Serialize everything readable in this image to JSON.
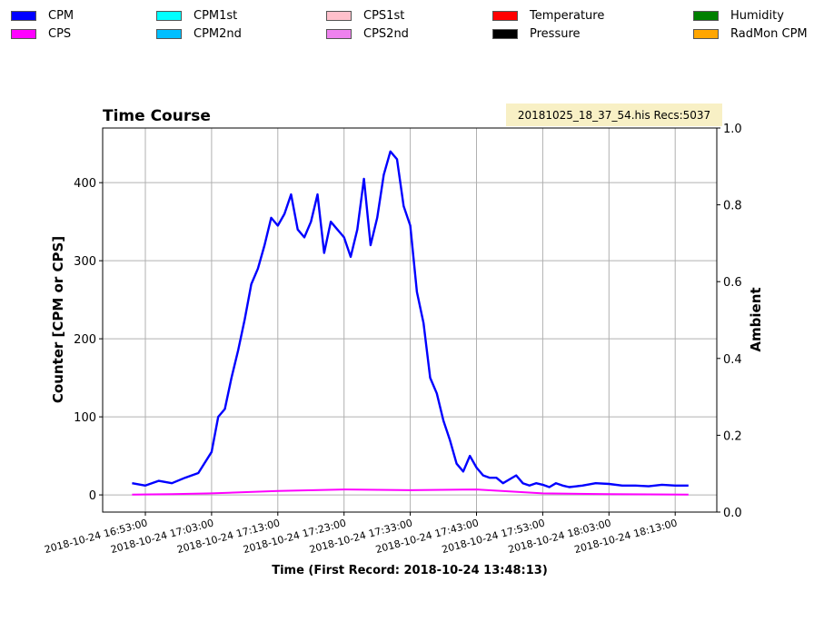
{
  "legend": [
    {
      "label": "CPM",
      "color": "#0000ff"
    },
    {
      "label": "CPS",
      "color": "#ff00ff"
    },
    {
      "label": "CPM1st",
      "color": "#00ffff"
    },
    {
      "label": "CPM2nd",
      "color": "#00bfff"
    },
    {
      "label": "CPS1st",
      "color": "#ffc0cb"
    },
    {
      "label": "CPS2nd",
      "color": "#ee82ee"
    },
    {
      "label": "Temperature",
      "color": "#ff0000"
    },
    {
      "label": "Pressure",
      "color": "#000000"
    },
    {
      "label": "Humidity",
      "color": "#008000"
    },
    {
      "label": "RadMon CPM",
      "color": "#ffa500"
    }
  ],
  "info_box": "20181025_18_37_54.his  Recs:5037",
  "chart_data": {
    "type": "line",
    "title": "Time Course",
    "xlabel": "Time (First Record: 2018-10-24 13:48:13)",
    "ylabel": "Counter  [CPM or CPS]",
    "y2label": "Ambient",
    "x_tick_labels": [
      "2018-10-24  16:53:00",
      "2018-10-24  17:03:00",
      "2018-10-24  17:13:00",
      "2018-10-24  17:23:00",
      "2018-10-24  17:33:00",
      "2018-10-24  17:43:00",
      "2018-10-24  17:53:00",
      "2018-10-24  18:03:00",
      "2018-10-24  18:13:00"
    ],
    "y_ticks": [
      0,
      100,
      200,
      300,
      400
    ],
    "y2_ticks": [
      "0.0",
      "0.2",
      "0.4",
      "0.6",
      "0.8",
      "1.0"
    ],
    "ylim": [
      -22,
      470
    ],
    "y2lim": [
      0,
      1
    ],
    "grid": true,
    "series": [
      {
        "name": "CPM",
        "color": "#0000ff",
        "x": [
          "16:51",
          "16:53",
          "16:55",
          "16:57",
          "16:59",
          "17:01",
          "17:03",
          "17:04",
          "17:05",
          "17:06",
          "17:07",
          "17:08",
          "17:09",
          "17:10",
          "17:11",
          "17:12",
          "17:13",
          "17:14",
          "17:15",
          "17:16",
          "17:17",
          "17:18",
          "17:19",
          "17:20",
          "17:21",
          "17:22",
          "17:23",
          "17:24",
          "17:25",
          "17:26",
          "17:27",
          "17:28",
          "17:29",
          "17:30",
          "17:31",
          "17:32",
          "17:33",
          "17:34",
          "17:35",
          "17:36",
          "17:37",
          "17:38",
          "17:39",
          "17:40",
          "17:41",
          "17:42",
          "17:43",
          "17:44",
          "17:45",
          "17:46",
          "17:47",
          "17:48",
          "17:49",
          "17:50",
          "17:51",
          "17:52",
          "17:53",
          "17:54",
          "17:55",
          "17:56",
          "17:57",
          "17:59",
          "18:01",
          "18:03",
          "18:05",
          "18:07",
          "18:09",
          "18:11",
          "18:13",
          "18:15"
        ],
        "values": [
          15,
          12,
          18,
          15,
          22,
          28,
          55,
          100,
          110,
          150,
          185,
          225,
          270,
          290,
          320,
          355,
          345,
          360,
          385,
          340,
          330,
          350,
          385,
          310,
          350,
          340,
          330,
          305,
          340,
          405,
          320,
          355,
          410,
          440,
          430,
          370,
          345,
          260,
          220,
          150,
          130,
          95,
          70,
          40,
          30,
          50,
          35,
          25,
          22,
          22,
          15,
          20,
          25,
          15,
          12,
          15,
          13,
          10,
          15,
          12,
          10,
          12,
          15,
          14,
          12,
          12,
          11,
          13,
          12,
          12
        ]
      },
      {
        "name": "CPS",
        "color": "#ff00ff",
        "x": [
          "16:51",
          "16:57",
          "17:03",
          "17:13",
          "17:23",
          "17:33",
          "17:43",
          "17:53",
          "18:03",
          "18:15"
        ],
        "values": [
          0.5,
          1,
          2,
          5,
          7,
          6,
          7,
          2,
          1,
          0.5
        ]
      }
    ]
  }
}
